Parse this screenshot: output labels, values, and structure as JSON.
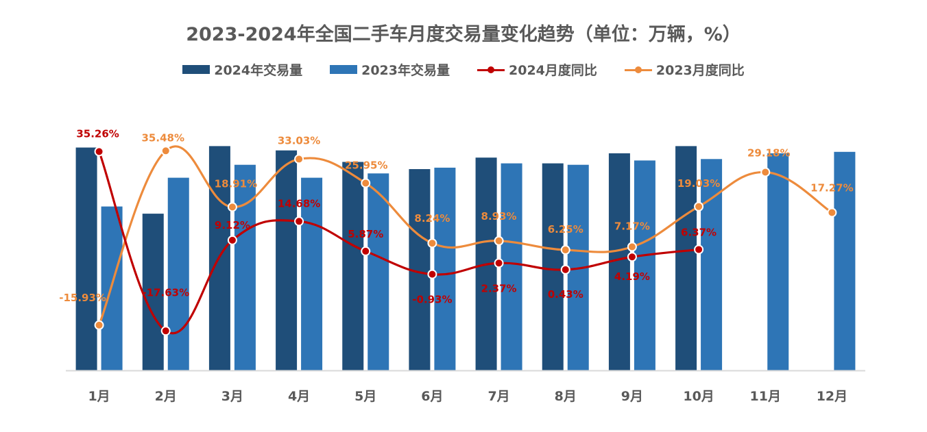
{
  "chart_data": {
    "type": "bar",
    "title": "2023-2024年全国二手车月度交易量变化趋势（单位：万辆，%）",
    "categories": [
      "1月",
      "2月",
      "3月",
      "4月",
      "5月",
      "6月",
      "7月",
      "8月",
      "9月",
      "10月",
      "11月",
      "12月"
    ],
    "bar_series": [
      {
        "name": "2024年交易量",
        "color": "#1f4e79",
        "values": [
          155,
          109,
          156,
          153,
          145,
          140,
          148,
          144,
          151,
          156,
          null,
          null
        ]
      },
      {
        "name": "2023年交易量",
        "color": "#2e75b6",
        "values": [
          114,
          134,
          143,
          134,
          137,
          141,
          144,
          143,
          146,
          147,
          151,
          152
        ]
      }
    ],
    "line_series": [
      {
        "name": "2024月度同比",
        "color": "#c00000",
        "values": [
          35.26,
          -17.63,
          9.12,
          14.68,
          5.87,
          -0.93,
          2.37,
          0.43,
          4.19,
          6.37,
          null,
          null
        ],
        "labels": [
          "35.26%",
          "-17.63%",
          "9.12%",
          "14.68%",
          "5.87%",
          "-0.93%",
          "2.37%",
          "0.43%",
          "4.19%",
          "6.37%",
          "",
          ""
        ]
      },
      {
        "name": "2023月度同比",
        "color": "#ed8b3c",
        "values": [
          -15.93,
          35.48,
          18.91,
          33.03,
          25.95,
          8.24,
          8.93,
          6.25,
          7.17,
          19.03,
          29.18,
          17.27
        ],
        "labels": [
          "-15.93%",
          "35.48%",
          "18.91%",
          "33.03%",
          "25.95%",
          "8.24%",
          "8.93%",
          "6.25%",
          "7.17%",
          "19.03%",
          "29.18%",
          "17.27%"
        ]
      }
    ],
    "bar_ylim": [
      0,
      160
    ],
    "line_ylim": [
      -21,
      42
    ],
    "grid": false,
    "legend_position": "top-center"
  }
}
